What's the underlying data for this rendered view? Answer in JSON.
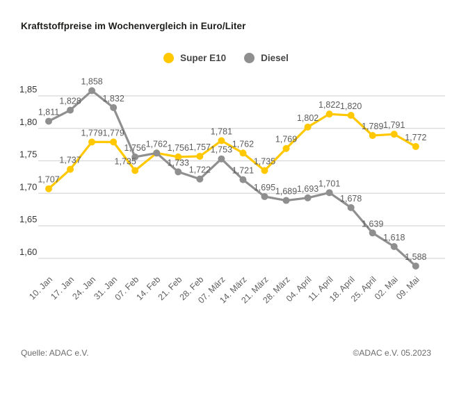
{
  "title": "Kraftstoffpreise im Wochenvergleich in Euro/Liter",
  "legend": {
    "items": [
      {
        "label": "Super E10",
        "color": "#FFC800"
      },
      {
        "label": "Diesel",
        "color": "#8F8F8F"
      }
    ]
  },
  "footer": {
    "source": "Quelle: ADAC e.V.",
    "copyright": "©ADAC e.V. 05.2023"
  },
  "chart_data": {
    "type": "line",
    "title": "Kraftstoffpreise im Wochenvergleich in Euro/Liter",
    "xlabel": "",
    "ylabel": "Euro/Liter",
    "categories": [
      "10. Jan",
      "17. Jan",
      "24. Jan",
      "31. Jan",
      "07. Feb",
      "14. Feb",
      "21. Feb",
      "28. Feb",
      "07. März",
      "14. März",
      "21. März",
      "28. März",
      "04. April",
      "11. April",
      "18. April",
      "25. April",
      "02. Mai",
      "09. Mai"
    ],
    "series": [
      {
        "name": "Super E10",
        "color": "#FFC800",
        "values": [
          1.707,
          1.737,
          1.779,
          1.779,
          1.735,
          1.762,
          1.756,
          1.757,
          1.781,
          1.762,
          1.735,
          1.769,
          1.802,
          1.822,
          1.82,
          1.789,
          1.791,
          1.772
        ],
        "hidden_labels": [
          5
        ]
      },
      {
        "name": "Diesel",
        "color": "#8F8F8F",
        "values": [
          1.811,
          1.828,
          1.858,
          1.832,
          1.756,
          1.762,
          1.733,
          1.722,
          1.753,
          1.721,
          1.695,
          1.689,
          1.693,
          1.701,
          1.678,
          1.639,
          1.618,
          1.588
        ],
        "hidden_labels": []
      }
    ],
    "yticks": [
      1.85,
      1.8,
      1.75,
      1.7,
      1.65,
      1.6
    ],
    "ylim": [
      1.575,
      1.875
    ],
    "grid": true,
    "legend_position": "top",
    "decimal_separator": ",",
    "point_labels_visible": true
  }
}
